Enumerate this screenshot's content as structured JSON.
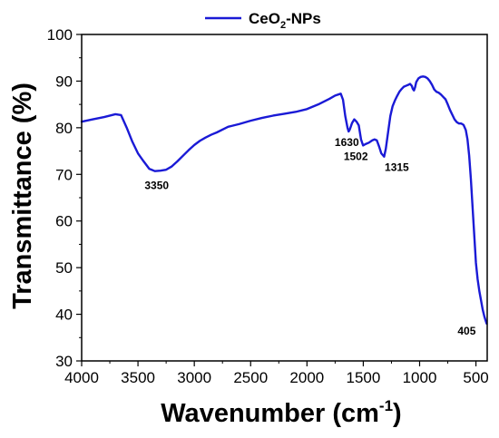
{
  "chart_data": {
    "type": "line",
    "xlabel": "Wavenumber (cm",
    "xlabel_sup": "-1",
    "xlabel_end": ")",
    "ylabel": "Transmittance (%)",
    "xlim": [
      4000,
      400
    ],
    "ylim": [
      30,
      100
    ],
    "x_reversed": true,
    "x_ticks": [
      4000,
      3500,
      3000,
      2500,
      2000,
      1500,
      1000,
      500
    ],
    "y_ticks": [
      30,
      40,
      50,
      60,
      70,
      80,
      90,
      100
    ],
    "legend": {
      "position": "top-center",
      "text_base": "CeO",
      "text_sub": "2",
      "text_end": "-NPs"
    },
    "series": [
      {
        "name": "CeO2-NPs",
        "color": "#1a1ad6",
        "points": [
          [
            4000,
            81.3
          ],
          [
            3900,
            81.8
          ],
          [
            3800,
            82.3
          ],
          [
            3700,
            82.9
          ],
          [
            3650,
            82.7
          ],
          [
            3600,
            80.0
          ],
          [
            3550,
            77.0
          ],
          [
            3500,
            74.5
          ],
          [
            3450,
            72.8
          ],
          [
            3400,
            71.2
          ],
          [
            3350,
            70.7
          ],
          [
            3300,
            70.8
          ],
          [
            3250,
            71.0
          ],
          [
            3200,
            71.7
          ],
          [
            3150,
            72.8
          ],
          [
            3100,
            74.0
          ],
          [
            3050,
            75.2
          ],
          [
            3000,
            76.3
          ],
          [
            2950,
            77.2
          ],
          [
            2900,
            77.9
          ],
          [
            2850,
            78.5
          ],
          [
            2800,
            79.0
          ],
          [
            2700,
            80.2
          ],
          [
            2600,
            80.8
          ],
          [
            2500,
            81.5
          ],
          [
            2400,
            82.1
          ],
          [
            2300,
            82.6
          ],
          [
            2200,
            83.0
          ],
          [
            2100,
            83.4
          ],
          [
            2000,
            84.0
          ],
          [
            1900,
            85.0
          ],
          [
            1800,
            86.2
          ],
          [
            1750,
            86.9
          ],
          [
            1700,
            87.3
          ],
          [
            1680,
            86.0
          ],
          [
            1660,
            82.5
          ],
          [
            1640,
            80.0
          ],
          [
            1630,
            79.2
          ],
          [
            1620,
            79.6
          ],
          [
            1600,
            81.0
          ],
          [
            1580,
            81.8
          ],
          [
            1560,
            81.3
          ],
          [
            1540,
            80.5
          ],
          [
            1520,
            77.5
          ],
          [
            1502,
            76.2
          ],
          [
            1480,
            76.5
          ],
          [
            1450,
            76.8
          ],
          [
            1420,
            77.3
          ],
          [
            1400,
            77.5
          ],
          [
            1380,
            77.3
          ],
          [
            1360,
            76.0
          ],
          [
            1340,
            74.5
          ],
          [
            1315,
            73.8
          ],
          [
            1300,
            75.5
          ],
          [
            1280,
            79.0
          ],
          [
            1260,
            82.5
          ],
          [
            1240,
            84.6
          ],
          [
            1220,
            85.8
          ],
          [
            1200,
            86.8
          ],
          [
            1180,
            87.7
          ],
          [
            1160,
            88.3
          ],
          [
            1140,
            88.8
          ],
          [
            1120,
            89.0
          ],
          [
            1100,
            89.2
          ],
          [
            1085,
            89.4
          ],
          [
            1070,
            89.0
          ],
          [
            1060,
            88.3
          ],
          [
            1050,
            88.0
          ],
          [
            1040,
            88.7
          ],
          [
            1030,
            89.8
          ],
          [
            1010,
            90.6
          ],
          [
            990,
            90.9
          ],
          [
            970,
            91.0
          ],
          [
            950,
            90.9
          ],
          [
            930,
            90.6
          ],
          [
            910,
            90.0
          ],
          [
            890,
            89.2
          ],
          [
            870,
            88.2
          ],
          [
            850,
            87.7
          ],
          [
            830,
            87.5
          ],
          [
            810,
            87.1
          ],
          [
            790,
            86.6
          ],
          [
            770,
            86.1
          ],
          [
            750,
            85.0
          ],
          [
            730,
            83.8
          ],
          [
            710,
            82.8
          ],
          [
            690,
            81.8
          ],
          [
            670,
            81.2
          ],
          [
            650,
            80.9
          ],
          [
            630,
            80.9
          ],
          [
            610,
            80.6
          ],
          [
            590,
            79.5
          ],
          [
            575,
            77.5
          ],
          [
            560,
            74.0
          ],
          [
            545,
            69.0
          ],
          [
            530,
            63.0
          ],
          [
            515,
            57.0
          ],
          [
            500,
            51.0
          ],
          [
            485,
            47.5
          ],
          [
            470,
            45.0
          ],
          [
            455,
            43.0
          ],
          [
            440,
            41.0
          ],
          [
            425,
            39.5
          ],
          [
            412,
            38.5
          ],
          [
            405,
            38.0
          ]
        ]
      }
    ],
    "annotations": [
      {
        "text": "3350",
        "x": 3350,
        "y": 70.7
      },
      {
        "text": "1630",
        "x": 1630,
        "y": 79.2
      },
      {
        "text": "1502",
        "x": 1502,
        "y": 76.2
      },
      {
        "text": "1315",
        "x": 1315,
        "y": 73.8
      },
      {
        "text": "405",
        "x": 405,
        "y": 38.0
      }
    ]
  }
}
